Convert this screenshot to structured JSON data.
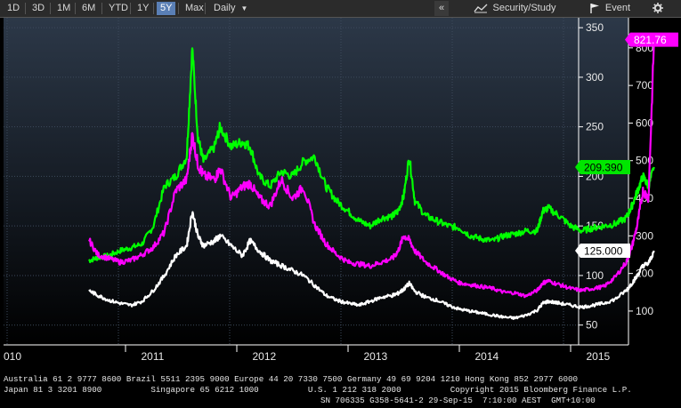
{
  "toolbar": {
    "ranges": [
      "1D",
      "3D",
      "1M",
      "6M",
      "YTD",
      "1Y",
      "5Y",
      "Max"
    ],
    "active_range": "5Y",
    "interval": "Daily",
    "dropdown_arrow": "▼",
    "collapse": "«",
    "security_study": "Security/Study",
    "event": "Event",
    "icons": [
      "chart-lines-icon",
      "flag-icon",
      "gear-icon"
    ]
  },
  "chart_data": {
    "type": "line",
    "x_labels": [
      "010",
      "2011",
      "2012",
      "2013",
      "2014",
      "2015"
    ],
    "left_axis": {
      "ticks": [
        50,
        100,
        150,
        200,
        250,
        300,
        350
      ],
      "range": [
        30,
        360
      ]
    },
    "right_axis": {
      "ticks": [
        100,
        200,
        300,
        400,
        500,
        600,
        700,
        800
      ],
      "range": [
        10,
        880
      ]
    },
    "series": [
      {
        "color": "#00ff00",
        "axis": "left",
        "last_label": "209.390",
        "values": [
          [
            2010.67,
            115
          ],
          [
            2010.75,
            118
          ],
          [
            2010.85,
            120
          ],
          [
            2010.95,
            125
          ],
          [
            2011.05,
            128
          ],
          [
            2011.15,
            132
          ],
          [
            2011.25,
            150
          ],
          [
            2011.35,
            190
          ],
          [
            2011.45,
            200
          ],
          [
            2011.55,
            220
          ],
          [
            2011.6,
            330
          ],
          [
            2011.65,
            240
          ],
          [
            2011.7,
            215
          ],
          [
            2011.8,
            230
          ],
          [
            2011.85,
            250
          ],
          [
            2011.95,
            230
          ],
          [
            2012.05,
            235
          ],
          [
            2012.12,
            230
          ],
          [
            2012.2,
            200
          ],
          [
            2012.3,
            190
          ],
          [
            2012.4,
            205
          ],
          [
            2012.5,
            200
          ],
          [
            2012.6,
            215
          ],
          [
            2012.7,
            220
          ],
          [
            2012.8,
            190
          ],
          [
            2012.9,
            175
          ],
          [
            2013.0,
            165
          ],
          [
            2013.1,
            155
          ],
          [
            2013.2,
            150
          ],
          [
            2013.3,
            158
          ],
          [
            2013.4,
            160
          ],
          [
            2013.45,
            165
          ],
          [
            2013.5,
            180
          ],
          [
            2013.55,
            220
          ],
          [
            2013.6,
            175
          ],
          [
            2013.7,
            160
          ],
          [
            2013.8,
            155
          ],
          [
            2013.9,
            150
          ],
          [
            2014.0,
            148
          ],
          [
            2014.1,
            140
          ],
          [
            2014.2,
            137
          ],
          [
            2014.3,
            135
          ],
          [
            2014.4,
            140
          ],
          [
            2014.5,
            142
          ],
          [
            2014.6,
            145
          ],
          [
            2014.7,
            145
          ],
          [
            2014.75,
            165
          ],
          [
            2014.8,
            168
          ],
          [
            2014.9,
            160
          ],
          [
            2015.0,
            150
          ],
          [
            2015.1,
            145
          ],
          [
            2015.2,
            148
          ],
          [
            2015.3,
            150
          ],
          [
            2015.4,
            152
          ],
          [
            2015.5,
            158
          ],
          [
            2015.55,
            170
          ],
          [
            2015.6,
            185
          ],
          [
            2015.65,
            200
          ],
          [
            2015.7,
            190
          ],
          [
            2015.75,
            209.39
          ]
        ]
      },
      {
        "color": "#ff00ff",
        "axis": "right",
        "last_label": "821.76",
        "values": [
          [
            2010.67,
            290
          ],
          [
            2010.75,
            250
          ],
          [
            2010.85,
            240
          ],
          [
            2010.95,
            230
          ],
          [
            2011.05,
            235
          ],
          [
            2011.15,
            250
          ],
          [
            2011.25,
            270
          ],
          [
            2011.35,
            310
          ],
          [
            2011.45,
            420
          ],
          [
            2011.55,
            450
          ],
          [
            2011.6,
            570
          ],
          [
            2011.65,
            490
          ],
          [
            2011.7,
            460
          ],
          [
            2011.8,
            450
          ],
          [
            2011.85,
            480
          ],
          [
            2011.95,
            400
          ],
          [
            2012.05,
            430
          ],
          [
            2012.12,
            440
          ],
          [
            2012.2,
            400
          ],
          [
            2012.3,
            380
          ],
          [
            2012.4,
            450
          ],
          [
            2012.5,
            400
          ],
          [
            2012.6,
            430
          ],
          [
            2012.7,
            330
          ],
          [
            2012.8,
            280
          ],
          [
            2012.9,
            250
          ],
          [
            2013.0,
            230
          ],
          [
            2013.1,
            225
          ],
          [
            2013.2,
            220
          ],
          [
            2013.3,
            230
          ],
          [
            2013.4,
            240
          ],
          [
            2013.45,
            260
          ],
          [
            2013.5,
            300
          ],
          [
            2013.55,
            290
          ],
          [
            2013.6,
            260
          ],
          [
            2013.7,
            230
          ],
          [
            2013.8,
            210
          ],
          [
            2013.9,
            190
          ],
          [
            2014.0,
            175
          ],
          [
            2014.1,
            170
          ],
          [
            2014.2,
            165
          ],
          [
            2014.3,
            160
          ],
          [
            2014.4,
            150
          ],
          [
            2014.5,
            148
          ],
          [
            2014.6,
            140
          ],
          [
            2014.7,
            155
          ],
          [
            2014.75,
            175
          ],
          [
            2014.8,
            180
          ],
          [
            2014.9,
            170
          ],
          [
            2015.0,
            160
          ],
          [
            2015.1,
            155
          ],
          [
            2015.2,
            160
          ],
          [
            2015.3,
            165
          ],
          [
            2015.4,
            190
          ],
          [
            2015.5,
            230
          ],
          [
            2015.55,
            270
          ],
          [
            2015.6,
            330
          ],
          [
            2015.65,
            420
          ],
          [
            2015.7,
            400
          ],
          [
            2015.75,
            821.76
          ]
        ]
      },
      {
        "color": "#ffffff",
        "axis": "left",
        "last_label": "125.000",
        "values": [
          [
            2010.67,
            85
          ],
          [
            2010.75,
            80
          ],
          [
            2010.85,
            75
          ],
          [
            2010.95,
            72
          ],
          [
            2011.05,
            70
          ],
          [
            2011.15,
            74
          ],
          [
            2011.25,
            85
          ],
          [
            2011.35,
            100
          ],
          [
            2011.45,
            120
          ],
          [
            2011.55,
            130
          ],
          [
            2011.6,
            165
          ],
          [
            2011.65,
            140
          ],
          [
            2011.7,
            130
          ],
          [
            2011.8,
            135
          ],
          [
            2011.85,
            140
          ],
          [
            2011.95,
            130
          ],
          [
            2012.05,
            120
          ],
          [
            2012.12,
            135
          ],
          [
            2012.2,
            125
          ],
          [
            2012.3,
            115
          ],
          [
            2012.4,
            110
          ],
          [
            2012.5,
            105
          ],
          [
            2012.6,
            100
          ],
          [
            2012.7,
            90
          ],
          [
            2012.8,
            80
          ],
          [
            2012.9,
            75
          ],
          [
            2013.0,
            72
          ],
          [
            2013.1,
            70
          ],
          [
            2013.2,
            74
          ],
          [
            2013.3,
            78
          ],
          [
            2013.4,
            80
          ],
          [
            2013.45,
            82
          ],
          [
            2013.5,
            86
          ],
          [
            2013.55,
            92
          ],
          [
            2013.6,
            84
          ],
          [
            2013.7,
            78
          ],
          [
            2013.8,
            75
          ],
          [
            2013.9,
            70
          ],
          [
            2014.0,
            66
          ],
          [
            2014.1,
            64
          ],
          [
            2014.2,
            62
          ],
          [
            2014.3,
            60
          ],
          [
            2014.4,
            58
          ],
          [
            2014.5,
            57
          ],
          [
            2014.6,
            60
          ],
          [
            2014.7,
            65
          ],
          [
            2014.75,
            72
          ],
          [
            2014.8,
            74
          ],
          [
            2014.9,
            72
          ],
          [
            2015.0,
            70
          ],
          [
            2015.1,
            68
          ],
          [
            2015.2,
            70
          ],
          [
            2015.3,
            72
          ],
          [
            2015.4,
            76
          ],
          [
            2015.5,
            85
          ],
          [
            2015.55,
            92
          ],
          [
            2015.6,
            100
          ],
          [
            2015.65,
            110
          ],
          [
            2015.7,
            112
          ],
          [
            2015.75,
            125
          ]
        ]
      }
    ]
  },
  "footer": {
    "line1": "Australia 61 2 9777 8600 Brazil 5511 2395 9000 Europe 44 20 7330 7500 Germany 49 69 9204 1210 Hong Kong 852 2977 6000",
    "line2": "Japan 81 3 3201 8900          Singapore 65 6212 1000          U.S. 1 212 318 2000          Copyright 2015 Bloomberg Finance L.P.",
    "line3": "SN 706335 G358-5641-2 29-Sep-15  7:10:00 AEST  GMT+10:00"
  }
}
